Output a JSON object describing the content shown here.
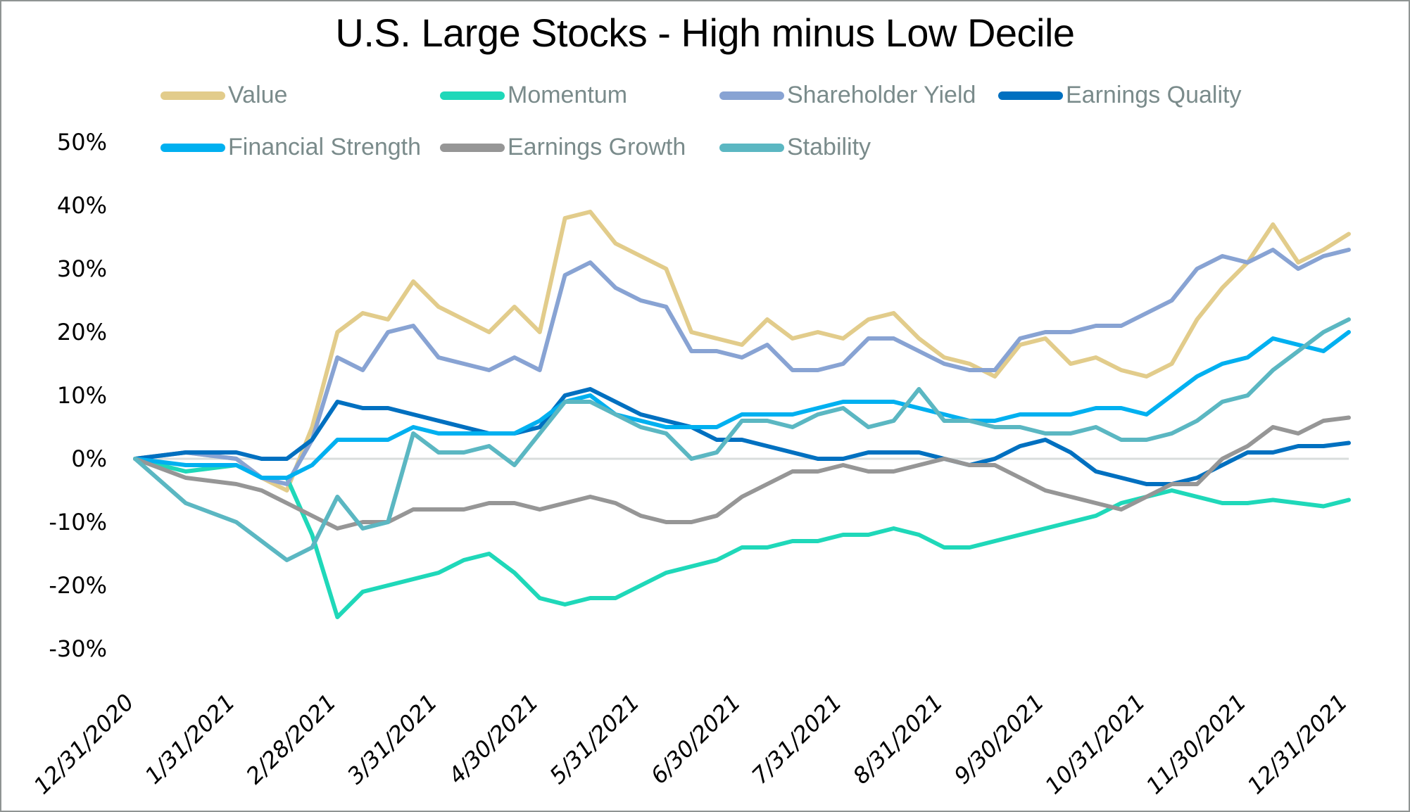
{
  "chart_data": {
    "type": "line",
    "title": "U.S. Large Stocks - High minus Low Decile",
    "xlabel": "",
    "ylabel": "",
    "ylim": [
      -0.3,
      0.5
    ],
    "y_ticks": [
      0.5,
      0.4,
      0.3,
      0.2,
      0.1,
      0.0,
      -0.1,
      -0.2,
      -0.3
    ],
    "y_tick_labels": [
      "50%",
      "40%",
      "30%",
      "20%",
      "10%",
      "0%",
      "-10%",
      "-20%",
      "-30%"
    ],
    "x_tick_labels": [
      "12/31/2020",
      "1/31/2021",
      "2/28/2021",
      "3/31/2021",
      "4/30/2021",
      "5/31/2021",
      "6/30/2021",
      "7/31/2021",
      "8/31/2021",
      "9/30/2021",
      "10/31/2021",
      "11/30/2021",
      "12/31/2021"
    ],
    "x_months_range": [
      0,
      12
    ],
    "grid": false,
    "zero_line": true,
    "legend_position": "top",
    "x": [
      0,
      0.5,
      1,
      1.25,
      1.5,
      1.75,
      2,
      2.25,
      2.5,
      2.75,
      3,
      3.25,
      3.5,
      3.75,
      4,
      4.25,
      4.5,
      4.75,
      5,
      5.25,
      5.5,
      5.75,
      6,
      6.25,
      6.5,
      6.75,
      7,
      7.25,
      7.5,
      7.75,
      8,
      8.25,
      8.5,
      8.75,
      9,
      9.25,
      9.5,
      9.75,
      10,
      10.25,
      10.5,
      10.75,
      11,
      11.25,
      11.5,
      11.75,
      12
    ],
    "series": [
      {
        "name": "Value",
        "color": "#e2cc8b",
        "values": [
          0,
          0.01,
          0.0,
          -0.03,
          -0.05,
          0.05,
          0.2,
          0.23,
          0.22,
          0.28,
          0.24,
          0.22,
          0.2,
          0.24,
          0.2,
          0.38,
          0.39,
          0.34,
          0.32,
          0.3,
          0.2,
          0.19,
          0.18,
          0.22,
          0.19,
          0.2,
          0.19,
          0.22,
          0.23,
          0.19,
          0.16,
          0.15,
          0.13,
          0.18,
          0.19,
          0.15,
          0.16,
          0.14,
          0.13,
          0.15,
          0.22,
          0.27,
          0.31,
          0.37,
          0.31,
          0.33,
          0.355
        ]
      },
      {
        "name": "Momentum",
        "color": "#1fd8b9",
        "values": [
          0,
          -0.02,
          -0.01,
          -0.03,
          -0.03,
          -0.12,
          -0.25,
          -0.21,
          -0.2,
          -0.19,
          -0.18,
          -0.16,
          -0.15,
          -0.18,
          -0.22,
          -0.23,
          -0.22,
          -0.22,
          -0.2,
          -0.18,
          -0.17,
          -0.16,
          -0.14,
          -0.14,
          -0.13,
          -0.13,
          -0.12,
          -0.12,
          -0.11,
          -0.12,
          -0.14,
          -0.14,
          -0.13,
          -0.12,
          -0.11,
          -0.1,
          -0.09,
          -0.07,
          -0.06,
          -0.05,
          -0.06,
          -0.07,
          -0.07,
          -0.065,
          -0.07,
          -0.075,
          -0.065
        ]
      },
      {
        "name": "Shareholder Yield",
        "color": "#88a3d3",
        "values": [
          0,
          0.01,
          0.0,
          -0.03,
          -0.04,
          0.03,
          0.16,
          0.14,
          0.2,
          0.21,
          0.16,
          0.15,
          0.14,
          0.16,
          0.14,
          0.29,
          0.31,
          0.27,
          0.25,
          0.24,
          0.17,
          0.17,
          0.16,
          0.18,
          0.14,
          0.14,
          0.15,
          0.19,
          0.19,
          0.17,
          0.15,
          0.14,
          0.14,
          0.19,
          0.2,
          0.2,
          0.21,
          0.21,
          0.23,
          0.25,
          0.3,
          0.32,
          0.31,
          0.33,
          0.3,
          0.32,
          0.33
        ]
      },
      {
        "name": "Earnings Quality",
        "color": "#0070c0",
        "values": [
          0,
          0.01,
          0.01,
          0.0,
          0.0,
          0.03,
          0.09,
          0.08,
          0.08,
          0.07,
          0.06,
          0.05,
          0.04,
          0.04,
          0.05,
          0.1,
          0.11,
          0.09,
          0.07,
          0.06,
          0.05,
          0.03,
          0.03,
          0.02,
          0.01,
          0.0,
          0.0,
          0.01,
          0.01,
          0.01,
          0.0,
          -0.01,
          0.0,
          0.02,
          0.03,
          0.01,
          -0.02,
          -0.03,
          -0.04,
          -0.04,
          -0.03,
          -0.01,
          0.01,
          0.01,
          0.02,
          0.02,
          0.025
        ]
      },
      {
        "name": "Financial Strength",
        "color": "#00b0f0",
        "values": [
          0,
          -0.01,
          -0.01,
          -0.03,
          -0.03,
          -0.01,
          0.03,
          0.03,
          0.03,
          0.05,
          0.04,
          0.04,
          0.04,
          0.04,
          0.06,
          0.09,
          0.1,
          0.07,
          0.06,
          0.05,
          0.05,
          0.05,
          0.07,
          0.07,
          0.07,
          0.08,
          0.09,
          0.09,
          0.09,
          0.08,
          0.07,
          0.06,
          0.06,
          0.07,
          0.07,
          0.07,
          0.08,
          0.08,
          0.07,
          0.1,
          0.13,
          0.15,
          0.16,
          0.19,
          0.18,
          0.17,
          0.2
        ]
      },
      {
        "name": "Earnings Growth",
        "color": "#969696",
        "values": [
          0,
          -0.03,
          -0.04,
          -0.05,
          -0.07,
          -0.09,
          -0.11,
          -0.1,
          -0.1,
          -0.08,
          -0.08,
          -0.08,
          -0.07,
          -0.07,
          -0.08,
          -0.07,
          -0.06,
          -0.07,
          -0.09,
          -0.1,
          -0.1,
          -0.09,
          -0.06,
          -0.04,
          -0.02,
          -0.02,
          -0.01,
          -0.02,
          -0.02,
          -0.01,
          0.0,
          -0.01,
          -0.01,
          -0.03,
          -0.05,
          -0.06,
          -0.07,
          -0.08,
          -0.06,
          -0.04,
          -0.04,
          0.0,
          0.02,
          0.05,
          0.04,
          0.06,
          0.065
        ]
      },
      {
        "name": "Stability",
        "color": "#5bb7c2",
        "values": [
          0,
          -0.07,
          -0.1,
          -0.13,
          -0.16,
          -0.14,
          -0.06,
          -0.11,
          -0.1,
          0.04,
          0.01,
          0.01,
          0.02,
          -0.01,
          0.04,
          0.09,
          0.09,
          0.07,
          0.05,
          0.04,
          0.0,
          0.01,
          0.06,
          0.06,
          0.05,
          0.07,
          0.08,
          0.05,
          0.06,
          0.11,
          0.06,
          0.06,
          0.05,
          0.05,
          0.04,
          0.04,
          0.05,
          0.03,
          0.03,
          0.04,
          0.06,
          0.09,
          0.1,
          0.14,
          0.17,
          0.2,
          0.22
        ]
      }
    ]
  }
}
